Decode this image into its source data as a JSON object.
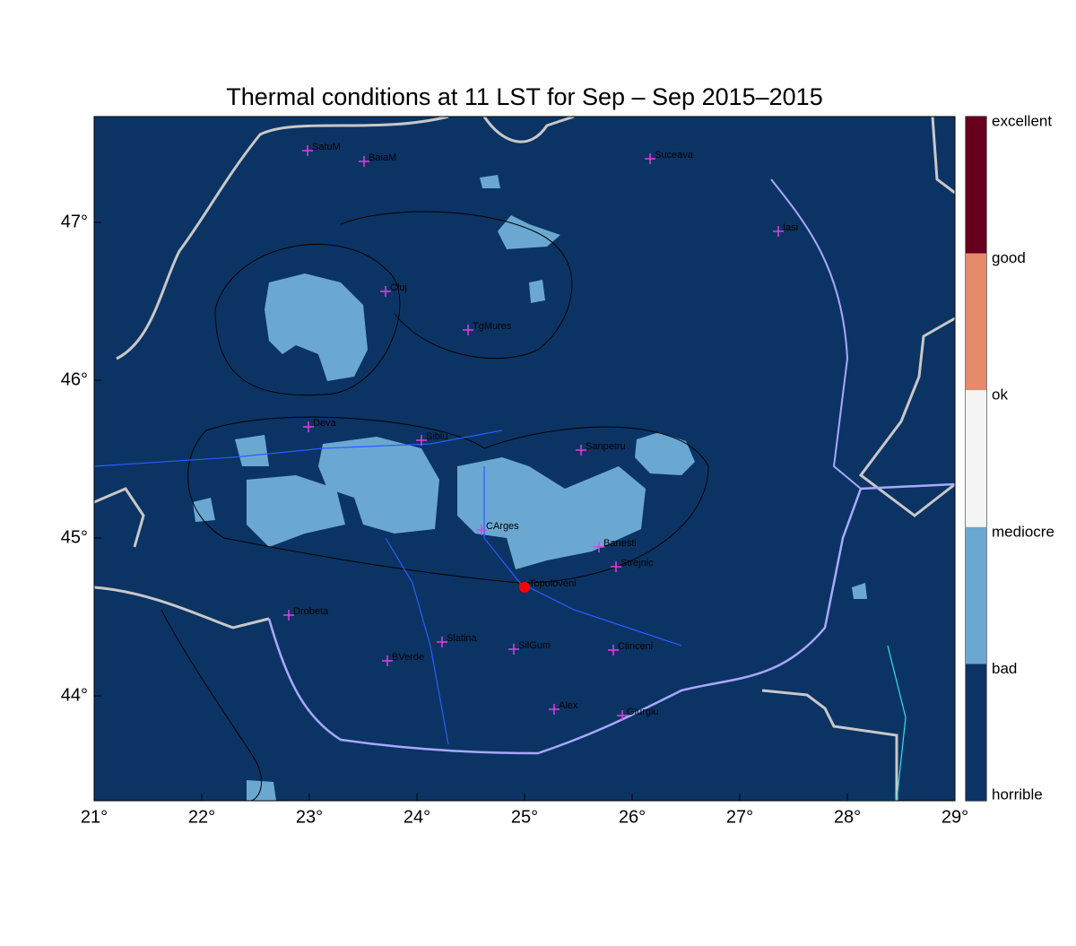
{
  "title": "Thermal conditions at 11 LST for Sep – Sep  2015–2015",
  "x_ticks": [
    "21°",
    "22°",
    "23°",
    "24°",
    "25°",
    "26°",
    "27°",
    "28°",
    "29°"
  ],
  "y_ticks": [
    "44°",
    "45°",
    "46°",
    "47°"
  ],
  "colorbar": [
    "excellent",
    "good",
    "ok",
    "mediocre",
    "bad",
    "horrible"
  ],
  "places": [
    "SatuM",
    "BaiaM",
    "Suceava",
    "Iasi",
    "Cluj",
    "TgMures",
    "Deva",
    "Sibiu",
    "Sanpetru",
    "CArges",
    "Banesti",
    "Strejnic",
    "Topoloveni",
    "Drobeta",
    "Slatina",
    "SilGum",
    "Clinceni",
    "BVerde",
    "Alex",
    "Giurgiu"
  ]
}
